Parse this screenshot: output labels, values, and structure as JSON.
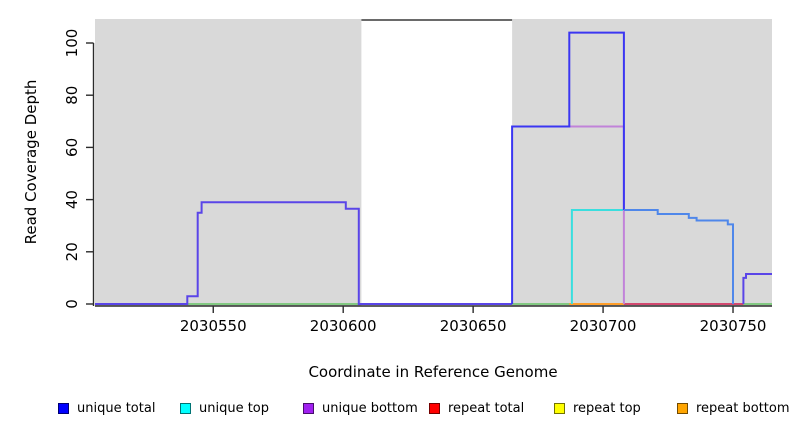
{
  "figure": {
    "ylabel": "Read Coverage Depth",
    "xlabel": "Coordinate in Reference Genome"
  },
  "chart_data": {
    "type": "line",
    "subtype": "step-coverage-depth",
    "title": "",
    "xlabel": "Coordinate in Reference Genome",
    "ylabel": "Read Coverage Depth",
    "x_ticks": [
      2030550,
      2030600,
      2030650,
      2030700,
      2030750
    ],
    "y_ticks": [
      0,
      20,
      40,
      60,
      80,
      100
    ],
    "xlim": [
      2030504.5,
      2030765
    ],
    "ylim": [
      0,
      109
    ],
    "grid": false,
    "legend_position": "bottom",
    "plot_bg": "#d9d9d9",
    "no_data_region": {
      "x0": 2030607,
      "x1": 2030665,
      "fill": "#ffffff",
      "top_border": "#6a6a6a"
    },
    "segments": [
      {
        "name": "baseline-overlap-green (unique top + repeat top at 0)",
        "color": "#82c982",
        "points": [
          [
            2030504.5,
            0
          ],
          [
            2030765,
            0
          ]
        ]
      },
      {
        "name": "repeat total visible at 0",
        "color": "#d24970",
        "points": [
          [
            2030708,
            0
          ],
          [
            2030754,
            0
          ]
        ]
      },
      {
        "name": "repeat bottom visible at 0",
        "color": "#ff9e2a",
        "points": [
          [
            2030687,
            0
          ],
          [
            2030708,
            0
          ]
        ]
      },
      {
        "name": "unique top (cyan) rise to 36",
        "color": "#3adede",
        "points": [
          [
            2030688,
            0
          ],
          [
            2030688,
            36
          ],
          [
            2030708,
            36
          ]
        ]
      },
      {
        "name": "unique bottom (light purple) shelf at 68",
        "color": "#c183d9",
        "points": [
          [
            2030687,
            68
          ],
          [
            2030708,
            68
          ],
          [
            2030708,
            0
          ]
        ]
      },
      {
        "name": "unique total left (overlaps unique bottom) plateau 39",
        "color": "#5a45e8",
        "points": [
          [
            2030504.5,
            0
          ],
          [
            2030540,
            0
          ],
          [
            2030540,
            3
          ],
          [
            2030544,
            3
          ],
          [
            2030544,
            35
          ],
          [
            2030545.5,
            35
          ],
          [
            2030545.5,
            39
          ],
          [
            2030601,
            39
          ],
          [
            2030601,
            36.5
          ],
          [
            2030606,
            36.5
          ],
          [
            2030606,
            0
          ],
          [
            2030665,
            0
          ]
        ]
      },
      {
        "name": "unique total shelf 68 and peak 104",
        "color": "#3b36f2",
        "points": [
          [
            2030665,
            0
          ],
          [
            2030665,
            68
          ],
          [
            2030687,
            68
          ],
          [
            2030687,
            104
          ],
          [
            2030708,
            104
          ],
          [
            2030708,
            36
          ]
        ]
      },
      {
        "name": "unique total right descent 36 to 30 (overlaps unique top)",
        "color": "#4f87ea",
        "points": [
          [
            2030708,
            36
          ],
          [
            2030721,
            36
          ],
          [
            2030721,
            34.5
          ],
          [
            2030733,
            34.5
          ],
          [
            2030733,
            33
          ],
          [
            2030736,
            33
          ],
          [
            2030736,
            32
          ],
          [
            2030748,
            32
          ],
          [
            2030748,
            30.5
          ],
          [
            2030750,
            30.5
          ],
          [
            2030750,
            0
          ]
        ]
      },
      {
        "name": "unique total end shelf 11 (overlaps unique bottom)",
        "color": "#5a45e8",
        "points": [
          [
            2030754,
            0
          ],
          [
            2030754,
            10
          ],
          [
            2030755,
            10
          ],
          [
            2030755,
            11.5
          ],
          [
            2030765,
            11.5
          ]
        ]
      }
    ]
  },
  "legend": {
    "items": [
      {
        "label": "unique total",
        "color": "#0000ff"
      },
      {
        "label": "unique top",
        "color": "#00ffff"
      },
      {
        "label": "unique bottom",
        "color": "#a020f0"
      },
      {
        "label": "repeat total",
        "color": "#ff0000"
      },
      {
        "label": "repeat top",
        "color": "#ffff00"
      },
      {
        "label": "repeat bottom",
        "color": "#ffa500"
      }
    ]
  }
}
